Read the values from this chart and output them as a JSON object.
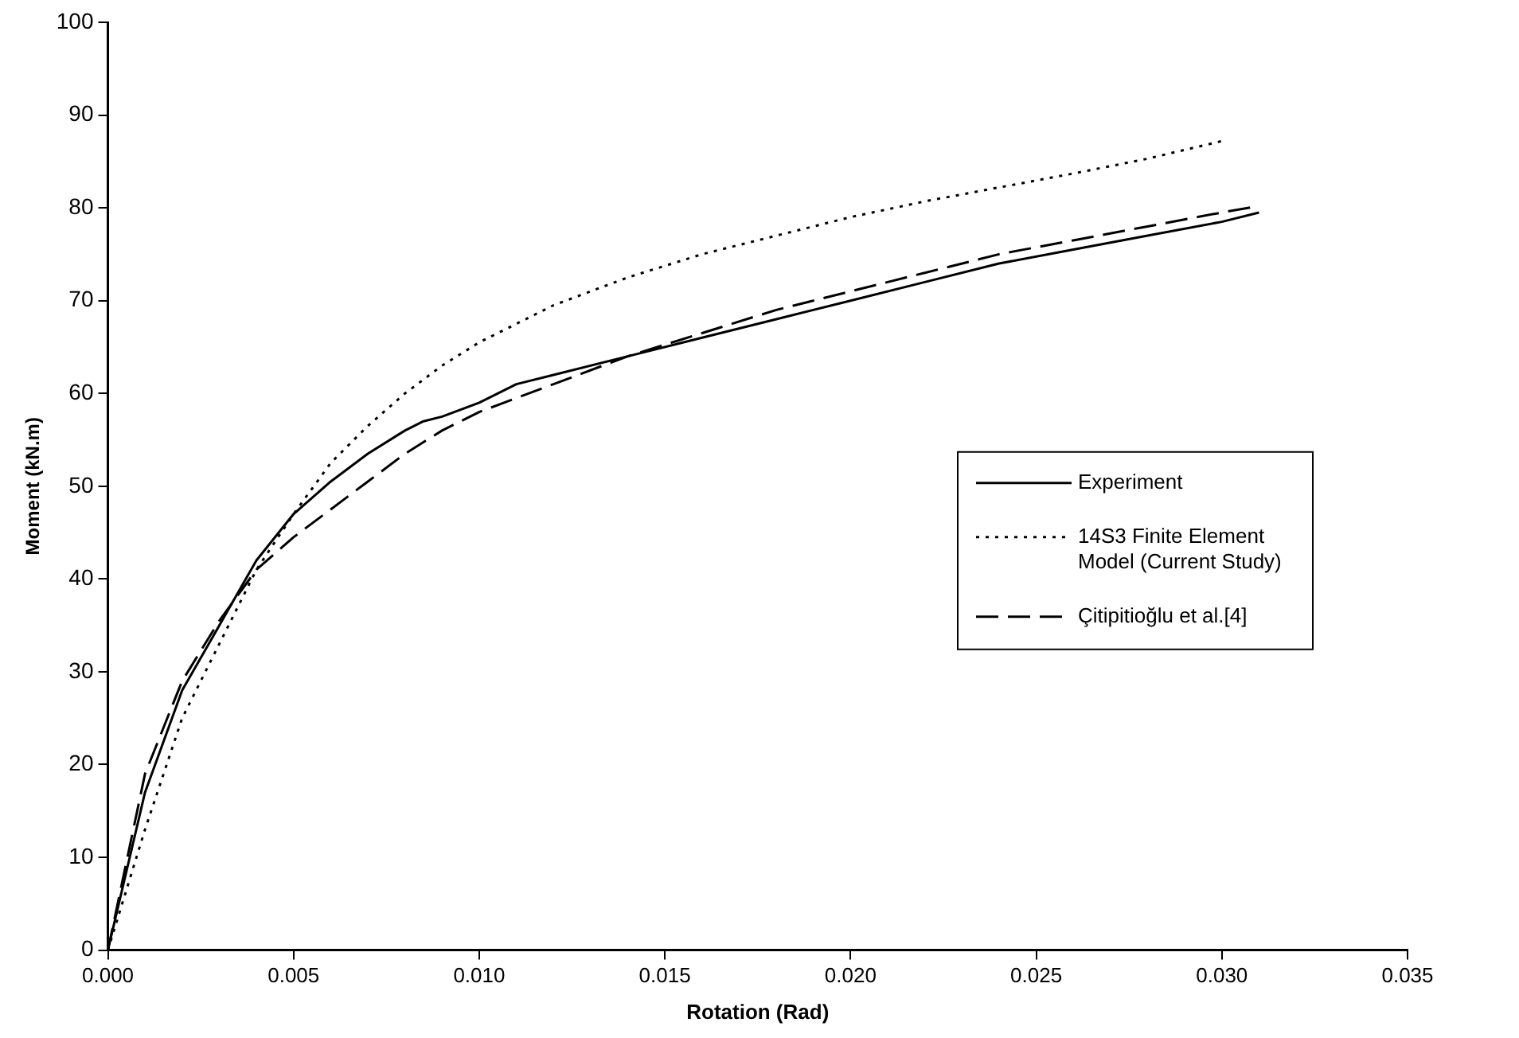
{
  "chart_data": {
    "type": "line",
    "xlabel": "Rotation (Rad)",
    "ylabel": "Moment (kN.m)",
    "xlim": [
      0,
      0.035
    ],
    "xticks": [
      {
        "value": 0,
        "label": "0.000"
      },
      {
        "value": 0.005,
        "label": "0.005"
      },
      {
        "value": 0.01,
        "label": "0.010"
      },
      {
        "value": 0.015,
        "label": "0.015"
      },
      {
        "value": 0.02,
        "label": "0.020"
      },
      {
        "value": 0.025,
        "label": "0.025"
      },
      {
        "value": 0.03,
        "label": "0.030"
      },
      {
        "value": 0.035,
        "label": "0.035"
      }
    ],
    "ylim": [
      0,
      100
    ],
    "yticks": [
      0,
      10,
      20,
      30,
      40,
      50,
      60,
      70,
      80,
      90,
      100
    ],
    "grid": false,
    "legend": "right",
    "marker": "none",
    "series": [
      {
        "name": "Experiment",
        "color": "#000000",
        "line_style": "solid",
        "x": [
          0,
          0.001,
          0.002,
          0.003,
          0.004,
          0.005,
          0.006,
          0.007,
          0.008,
          0.0085,
          0.009,
          0.01,
          0.011,
          0.012,
          0.014,
          0.016,
          0.018,
          0.02,
          0.022,
          0.024,
          0.026,
          0.028,
          0.03,
          0.031
        ],
        "values": [
          0,
          17,
          28,
          35,
          42,
          47,
          50.5,
          53.5,
          56,
          57,
          57.5,
          59,
          61,
          62,
          64,
          66,
          68,
          70,
          72,
          74,
          75.5,
          77,
          78.5,
          79.5
        ]
      },
      {
        "name": "14S3 Finite Element Model (Current Study)",
        "color": "#000000",
        "line_style": "dotted",
        "x": [
          0,
          0.001,
          0.002,
          0.003,
          0.004,
          0.005,
          0.006,
          0.007,
          0.008,
          0.009,
          0.01,
          0.012,
          0.014,
          0.016,
          0.018,
          0.02,
          0.022,
          0.024,
          0.026,
          0.028,
          0.03
        ],
        "values": [
          0,
          13,
          25,
          33,
          41,
          47,
          52.5,
          56.5,
          60,
          63,
          65.5,
          69.5,
          72.5,
          75,
          77,
          79,
          80.7,
          82.2,
          83.7,
          85.3,
          87.2
        ]
      },
      {
        "name": "Çitipitioğlu et al.[4]",
        "color": "#000000",
        "line_style": "dashed",
        "x": [
          0,
          0.001,
          0.002,
          0.003,
          0.004,
          0.005,
          0.006,
          0.007,
          0.008,
          0.009,
          0.01,
          0.012,
          0.014,
          0.016,
          0.018,
          0.02,
          0.022,
          0.024,
          0.026,
          0.028,
          0.03,
          0.031
        ],
        "values": [
          0,
          19,
          29,
          35.5,
          41,
          44.5,
          47.5,
          50.5,
          53.5,
          56,
          58,
          61,
          64,
          66.5,
          69,
          71,
          73,
          75,
          76.5,
          78,
          79.5,
          80.2
        ]
      }
    ]
  }
}
